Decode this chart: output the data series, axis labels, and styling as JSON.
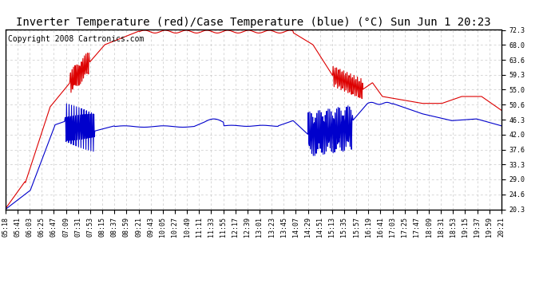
{
  "title": "Inverter Temperature (red)/Case Temperature (blue) (°C) Sun Jun 1 20:23",
  "copyright": "Copyright 2008 Cartronics.com",
  "background_color": "#ffffff",
  "plot_bg_color": "#ffffff",
  "grid_color": "#c8c8c8",
  "red_color": "#dd0000",
  "blue_color": "#0000cc",
  "y_ticks": [
    20.3,
    24.6,
    29.0,
    33.3,
    37.6,
    42.0,
    46.3,
    50.6,
    55.0,
    59.3,
    63.6,
    68.0,
    72.3
  ],
  "ylim": [
    20.3,
    72.3
  ],
  "x_labels": [
    "05:18",
    "05:41",
    "06:03",
    "06:25",
    "06:47",
    "07:09",
    "07:31",
    "07:53",
    "08:15",
    "08:37",
    "08:59",
    "09:21",
    "09:43",
    "10:05",
    "10:27",
    "10:49",
    "11:11",
    "11:33",
    "11:55",
    "12:17",
    "12:39",
    "13:01",
    "13:23",
    "13:45",
    "14:07",
    "14:29",
    "14:51",
    "15:13",
    "15:35",
    "15:57",
    "16:19",
    "16:41",
    "17:03",
    "17:25",
    "17:47",
    "18:09",
    "18:31",
    "18:53",
    "19:15",
    "19:37",
    "19:59",
    "20:21"
  ],
  "title_fontsize": 10,
  "copyright_fontsize": 7,
  "tick_fontsize": 6,
  "line_width": 0.8
}
